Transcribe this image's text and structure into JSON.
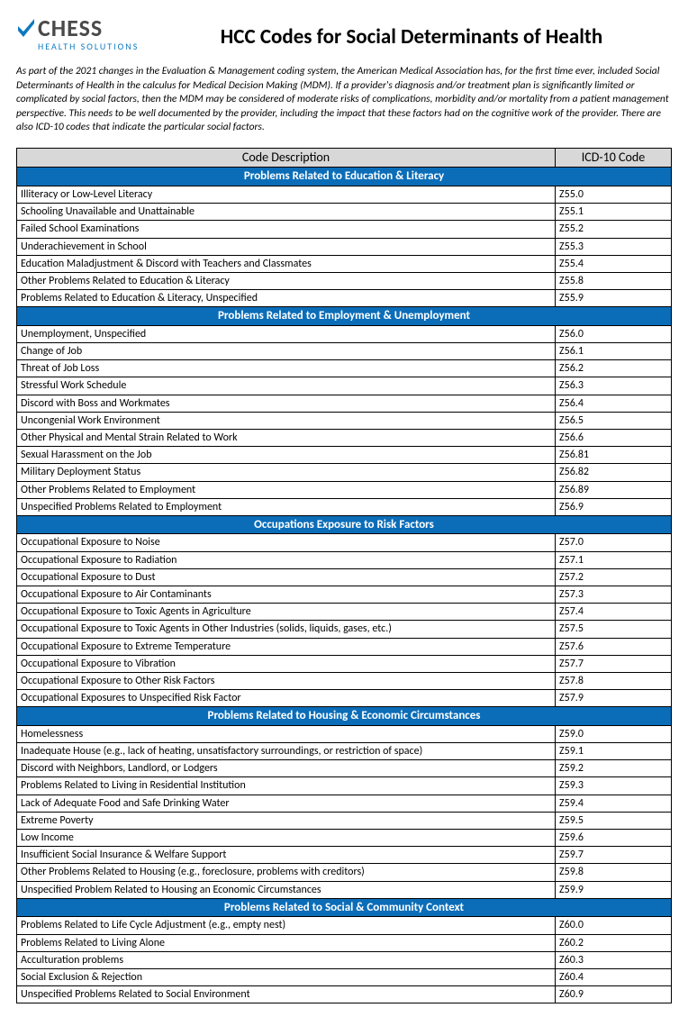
{
  "logo": {
    "main": "CHESS",
    "sub": "HEALTH SOLUTIONS"
  },
  "title": "HCC Codes for Social Determinants of Health",
  "intro": "As part of the 2021 changes in the Evaluation & Management coding system, the American Medical Association has, for the first time ever, included Social Determinants of Health in the calculus for Medical Decision Making (MDM). If a provider's diagnosis and/or treatment plan is significantly limited or complicated by social factors, then the MDM may be considered of moderate risks of complications, morbidity and/or mortality from a patient management perspective. This needs to be well documented by the provider, including the impact that these factors had on the cognitive work of the provider. There are also ICD-10 codes that indicate the particular social factors.",
  "columns": {
    "desc": "Code Description",
    "code": "ICD-10 Code"
  },
  "colors": {
    "section_bg": "#0b6db8",
    "section_text": "#ffffff",
    "header_bg": "#d8d8d8",
    "logo_accent": "#0d7abf",
    "logo_text": "#4a4a4a"
  },
  "sections": [
    {
      "title": "Problems Related to Education & Literacy",
      "rows": [
        {
          "desc": "Illiteracy or Low-Level Literacy",
          "code": "Z55.0"
        },
        {
          "desc": "Schooling Unavailable and Unattainable",
          "code": "Z55.1"
        },
        {
          "desc": "Failed School Examinations",
          "code": "Z55.2"
        },
        {
          "desc": "Underachievement in School",
          "code": "Z55.3"
        },
        {
          "desc": "Education Maladjustment & Discord with Teachers and Classmates",
          "code": "Z55.4"
        },
        {
          "desc": "Other Problems Related to Education & Literacy",
          "code": "Z55.8"
        },
        {
          "desc": "Problems Related to Education & Literacy, Unspecified",
          "code": "Z55.9"
        }
      ]
    },
    {
      "title": "Problems Related to Employment & Unemployment",
      "rows": [
        {
          "desc": "Unemployment, Unspecified",
          "code": "Z56.0"
        },
        {
          "desc": "Change of Job",
          "code": "Z56.1"
        },
        {
          "desc": "Threat of Job Loss",
          "code": "Z56.2"
        },
        {
          "desc": "Stressful Work Schedule",
          "code": "Z56.3"
        },
        {
          "desc": "Discord with Boss and Workmates",
          "code": "Z56.4"
        },
        {
          "desc": "Uncongenial Work Environment",
          "code": "Z56.5"
        },
        {
          "desc": "Other Physical and Mental Strain Related to Work",
          "code": "Z56.6"
        },
        {
          "desc": "Sexual Harassment on the Job",
          "code": "Z56.81"
        },
        {
          "desc": "Military Deployment Status",
          "code": "Z56.82"
        },
        {
          "desc": "Other Problems Related to Employment",
          "code": "Z56.89"
        },
        {
          "desc": "Unspecified Problems Related to Employment",
          "code": "Z56.9"
        }
      ]
    },
    {
      "title": "Occupations Exposure to Risk Factors",
      "rows": [
        {
          "desc": "Occupational Exposure to Noise",
          "code": "Z57.0"
        },
        {
          "desc": "Occupational Exposure to Radiation",
          "code": "Z57.1"
        },
        {
          "desc": "Occupational Exposure to Dust",
          "code": "Z57.2"
        },
        {
          "desc": "Occupational Exposure to Air Contaminants",
          "code": "Z57.3"
        },
        {
          "desc": "Occupational Exposure to Toxic Agents in Agriculture",
          "code": "Z57.4"
        },
        {
          "desc": "Occupational Exposure to Toxic Agents in Other Industries (solids, liquids, gases, etc.)",
          "code": "Z57.5"
        },
        {
          "desc": "Occupational Exposure to Extreme Temperature",
          "code": "Z57.6"
        },
        {
          "desc": "Occupational Exposure to Vibration",
          "code": "Z57.7"
        },
        {
          "desc": "Occupational Exposure to Other Risk Factors",
          "code": "Z57.8"
        },
        {
          "desc": "Occupational Exposures to Unspecified Risk Factor",
          "code": "Z57.9"
        }
      ]
    },
    {
      "title": "Problems Related to Housing & Economic Circumstances",
      "rows": [
        {
          "desc": "Homelessness",
          "code": "Z59.0"
        },
        {
          "desc": "Inadequate House (e.g., lack of heating, unsatisfactory surroundings, or restriction of space)",
          "code": "Z59.1"
        },
        {
          "desc": "Discord with Neighbors, Landlord, or Lodgers",
          "code": "Z59.2"
        },
        {
          "desc": "Problems Related to Living in Residential Institution",
          "code": "Z59.3"
        },
        {
          "desc": "Lack of Adequate Food and Safe Drinking Water",
          "code": "Z59.4"
        },
        {
          "desc": "Extreme Poverty",
          "code": "Z59.5"
        },
        {
          "desc": "Low Income",
          "code": "Z59.6"
        },
        {
          "desc": "Insufficient Social Insurance & Welfare Support",
          "code": "Z59.7"
        },
        {
          "desc": "Other Problems Related to Housing (e.g., foreclosure, problems with creditors)",
          "code": "Z59.8"
        },
        {
          "desc": "Unspecified Problem Related to Housing an Economic Circumstances",
          "code": "Z59.9"
        }
      ]
    },
    {
      "title": "Problems Related to Social & Community Context",
      "rows": [
        {
          "desc": "Problems Related to Life Cycle Adjustment (e.g., empty nest)",
          "code": "Z60.0"
        },
        {
          "desc": "Problems Related to Living Alone",
          "code": "Z60.2"
        },
        {
          "desc": "Acculturation problems",
          "code": "Z60.3"
        },
        {
          "desc": "Social Exclusion & Rejection",
          "code": "Z60.4"
        },
        {
          "desc": "Unspecified Problems Related to Social Environment",
          "code": "Z60.9"
        }
      ]
    }
  ]
}
